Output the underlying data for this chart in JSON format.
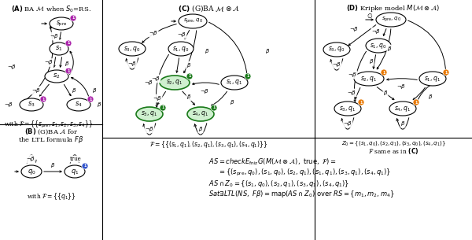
{
  "bg_color": "#ffffff",
  "purple_color": "#aa22aa",
  "green_color": "#1a7a1a",
  "green_fill": "#d0f0d0",
  "orange_color": "#e87800",
  "blue_color": "#3355cc",
  "divider_color": "#333333"
}
